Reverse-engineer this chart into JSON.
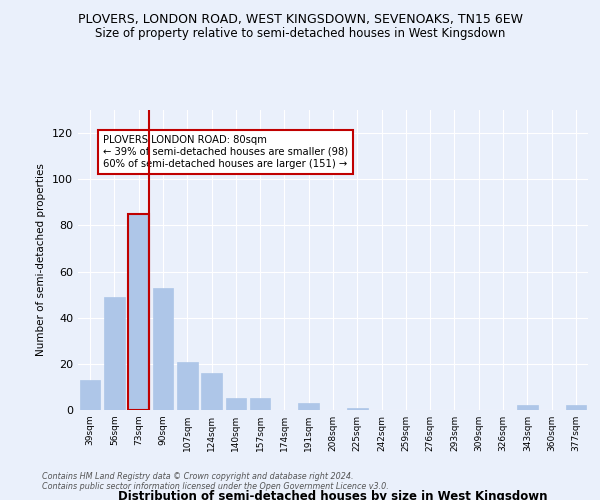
{
  "title": "PLOVERS, LONDON ROAD, WEST KINGSDOWN, SEVENOAKS, TN15 6EW",
  "subtitle": "Size of property relative to semi-detached houses in West Kingsdown",
  "xlabel": "Distribution of semi-detached houses by size in West Kingsdown",
  "ylabel": "Number of semi-detached properties",
  "categories": [
    "39sqm",
    "56sqm",
    "73sqm",
    "90sqm",
    "107sqm",
    "124sqm",
    "140sqm",
    "157sqm",
    "174sqm",
    "191sqm",
    "208sqm",
    "225sqm",
    "242sqm",
    "259sqm",
    "276sqm",
    "293sqm",
    "309sqm",
    "326sqm",
    "343sqm",
    "360sqm",
    "377sqm"
  ],
  "values": [
    13,
    49,
    85,
    53,
    21,
    16,
    5,
    5,
    0,
    3,
    0,
    1,
    0,
    0,
    0,
    0,
    0,
    0,
    2,
    0,
    2
  ],
  "bar_color": "#aec6e8",
  "bar_edge_color": "#aec6e8",
  "highlight_bar_index": 2,
  "highlight_color": "#c00000",
  "annotation_title": "PLOVERS LONDON ROAD: 80sqm",
  "annotation_line1": "← 39% of semi-detached houses are smaller (98)",
  "annotation_line2": "60% of semi-detached houses are larger (151) →",
  "annotation_box_color": "#ffffff",
  "annotation_box_edge": "#c00000",
  "ylim": [
    0,
    130
  ],
  "yticks": [
    0,
    20,
    40,
    60,
    80,
    100,
    120
  ],
  "footnote1": "Contains HM Land Registry data © Crown copyright and database right 2024.",
  "footnote2": "Contains public sector information licensed under the Open Government Licence v3.0.",
  "bg_color": "#eaf0fb",
  "plot_bg_color": "#eaf0fb",
  "title_fontsize": 9,
  "subtitle_fontsize": 8.5
}
